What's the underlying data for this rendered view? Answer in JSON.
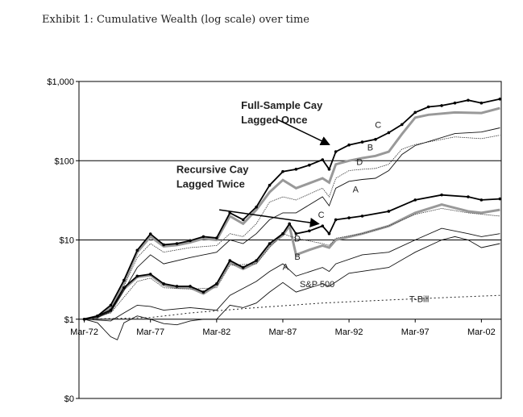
{
  "chart_data": {
    "type": "line",
    "title": "Exhibit 1: Cumulative Wealth (log scale) over time",
    "yscale": "log",
    "ylim": [
      0.1,
      1000
    ],
    "xlim": [
      1971.6,
      2003.5
    ],
    "y_ticks": [
      {
        "v": 1000,
        "label": "$1,000"
      },
      {
        "v": 100,
        "label": "$100"
      },
      {
        "v": 10,
        "label": "$10"
      },
      {
        "v": 1,
        "label": "$1"
      },
      {
        "v": 0.1,
        "label": "$0"
      }
    ],
    "x_ticks": [
      {
        "v": 1972,
        "label": "Mar-72"
      },
      {
        "v": 1977,
        "label": "Mar-77"
      },
      {
        "v": 1982,
        "label": "Mar-82"
      },
      {
        "v": 1987,
        "label": "Mar-87"
      },
      {
        "v": 1992,
        "label": "Mar-92"
      },
      {
        "v": 1997,
        "label": "Mar-97"
      },
      {
        "v": 2002,
        "label": "Mar-02"
      }
    ],
    "grid": "horizontal",
    "series": [
      {
        "name": "Full-Sample C",
        "style": "c",
        "x": [
          1972,
          1973,
          1974,
          1975,
          1976,
          1977,
          1978,
          1979,
          1980,
          1981,
          1982,
          1983,
          1984,
          1985,
          1986,
          1987,
          1988,
          1989,
          1990,
          1990.5,
          1991,
          1992,
          1993,
          1994,
          1995,
          1996,
          1997,
          1998,
          1999,
          2000,
          2001,
          2002,
          2003.4
        ],
        "y": [
          1,
          1.1,
          1.5,
          3.1,
          7.4,
          11.9,
          8.7,
          9,
          9.8,
          11,
          10.6,
          22,
          18,
          26,
          49,
          73,
          78,
          88,
          103,
          78,
          130,
          158,
          172,
          186,
          226,
          286,
          407,
          478,
          496,
          535,
          580,
          535,
          600
        ]
      },
      {
        "name": "Full-Sample B",
        "style": "b",
        "x": [
          1972,
          1973,
          1974,
          1975,
          1976,
          1977,
          1978,
          1979,
          1980,
          1981,
          1982,
          1983,
          1984,
          1985,
          1986,
          1987,
          1988,
          1989,
          1990,
          1990.5,
          1991,
          1992,
          1993,
          1994,
          1995,
          1996,
          1997,
          1998,
          2000,
          2002,
          2003.4
        ],
        "y": [
          1,
          1.05,
          1.4,
          2.9,
          7,
          11,
          8.3,
          8.6,
          9.3,
          10.4,
          10,
          20,
          16,
          24,
          40,
          57,
          45,
          52,
          60,
          53,
          90,
          100,
          108,
          115,
          130,
          217,
          350,
          380,
          407,
          400,
          460
        ]
      },
      {
        "name": "Full-Sample D",
        "style": "d",
        "x": [
          1972,
          1973,
          1974,
          1975,
          1976,
          1977,
          1978,
          1980,
          1982,
          1983,
          1984,
          1985,
          1986,
          1987,
          1988,
          1990,
          1990.5,
          1991,
          1992,
          1993,
          1994,
          1995,
          1996,
          1997,
          2000,
          2002,
          2003.4
        ],
        "y": [
          1,
          1.05,
          1.3,
          2.6,
          6,
          9,
          7,
          8,
          8.5,
          12,
          11,
          16,
          30,
          35,
          32,
          45,
          35,
          60,
          75,
          78,
          80,
          90,
          140,
          160,
          200,
          190,
          210
        ]
      },
      {
        "name": "Full-Sample A",
        "style": "a",
        "x": [
          1972,
          1973,
          1974,
          1975,
          1976,
          1977,
          1978,
          1980,
          1982,
          1983,
          1984,
          1985,
          1986,
          1987,
          1988,
          1990,
          1990.5,
          1991,
          1992,
          1993,
          1994,
          1995,
          1996,
          1997,
          2000,
          2002,
          2003.4
        ],
        "y": [
          1,
          1.05,
          1.25,
          2.3,
          4.5,
          6.5,
          5,
          6,
          7,
          10,
          9,
          12,
          18,
          22,
          22,
          35,
          27,
          45,
          55,
          58,
          60,
          75,
          120,
          155,
          220,
          230,
          260
        ]
      },
      {
        "name": "Recursive C",
        "style": "c",
        "x": [
          1972,
          1973,
          1974,
          1975,
          1976,
          1977,
          1978,
          1979,
          1980,
          1981,
          1982,
          1983,
          1984,
          1985,
          1986,
          1987,
          1987.5,
          1988,
          1989,
          1990,
          1990.5,
          1991,
          1992,
          1993,
          1995,
          1997,
          1999,
          2001,
          2002,
          2003.4
        ],
        "y": [
          1,
          1.1,
          1.3,
          2.5,
          3.5,
          3.7,
          2.8,
          2.6,
          2.6,
          2.2,
          2.8,
          5.5,
          4.5,
          5.5,
          9,
          12,
          16,
          12,
          13,
          15,
          12,
          18,
          19,
          20,
          23,
          32,
          37,
          35,
          32,
          33
        ]
      },
      {
        "name": "Recursive B",
        "style": "b",
        "x": [
          1972,
          1973,
          1974,
          1975,
          1976,
          1977,
          1978,
          1979,
          1980,
          1981,
          1982,
          1983,
          1984,
          1985,
          1986,
          1987,
          1987.5,
          1988,
          1989,
          1990,
          1990.5,
          1991,
          1993,
          1995,
          1997,
          1999,
          2001,
          2002,
          2003.4
        ],
        "y": [
          1,
          1.08,
          1.25,
          2.4,
          3.4,
          3.6,
          2.7,
          2.5,
          2.5,
          2.1,
          2.7,
          5.2,
          4.3,
          5.2,
          8.5,
          11.5,
          15,
          6.5,
          7.5,
          8.5,
          8,
          10,
          12,
          15,
          22,
          28,
          23,
          22,
          24
        ]
      },
      {
        "name": "Recursive D",
        "style": "d",
        "x": [
          1972,
          1974,
          1976,
          1977,
          1978,
          1980,
          1982,
          1983,
          1985,
          1986,
          1987,
          1988,
          1990,
          1990.5,
          1991,
          1993,
          1995,
          1997,
          1999,
          2001,
          2003.4
        ],
        "y": [
          1,
          1.2,
          3,
          3.3,
          2.5,
          2.4,
          2.5,
          4.8,
          5,
          8,
          12,
          10.5,
          9,
          8.5,
          10.5,
          12,
          15,
          21,
          25,
          22,
          20
        ]
      },
      {
        "name": "Recursive A",
        "style": "a",
        "x": [
          1972,
          1974,
          1975,
          1976,
          1977,
          1978,
          1980,
          1982,
          1983,
          1985,
          1986,
          1987,
          1988,
          1990,
          1990.5,
          1991,
          1993,
          1995,
          1997,
          1999,
          2001,
          2002,
          2003.4
        ],
        "y": [
          1,
          0.95,
          1.2,
          1.5,
          1.45,
          1.3,
          1.4,
          1.3,
          2,
          3,
          4,
          5,
          3.5,
          4.5,
          4,
          5,
          6.5,
          7,
          10,
          14,
          12,
          11,
          12
        ]
      },
      {
        "name": "S&P 500",
        "style": "a",
        "x": [
          1972,
          1973,
          1974,
          1974.5,
          1975,
          1976,
          1977,
          1978,
          1979,
          1980,
          1981,
          1982,
          1983,
          1984,
          1985,
          1986,
          1987,
          1988,
          1990,
          1990.5,
          1992,
          1995,
          1997,
          1999,
          2000,
          2001,
          2002,
          2003.4
        ],
        "y": [
          1,
          0.9,
          0.6,
          0.55,
          0.9,
          1.1,
          1.0,
          0.88,
          0.85,
          0.95,
          1.0,
          1.0,
          1.5,
          1.4,
          1.6,
          2.2,
          2.9,
          2.2,
          2.8,
          2.6,
          3.8,
          4.5,
          7,
          10,
          11,
          10,
          8,
          9
        ]
      },
      {
        "name": "T-Bill",
        "style": "t",
        "x": [
          1972,
          1977,
          1980,
          1985,
          1990,
          1995,
          2000,
          2003.4
        ],
        "y": [
          1,
          1.05,
          1.2,
          1.4,
          1.6,
          1.75,
          1.9,
          2.0
        ]
      }
    ],
    "annotations": [
      {
        "text": [
          "Full-Sample Cay",
          "Lagged Once"
        ],
        "x": 1987.5,
        "y": 450,
        "arrow_to": [
          1990.5,
          160
        ],
        "arrow_from": [
          1986.6,
          330
        ]
      },
      {
        "text": [
          "Recursive Cay",
          "Lagged Twice"
        ],
        "x": 1982,
        "y": 70,
        "arrow_to": [
          1989.7,
          16
        ],
        "arrow_from": [
          1982.2,
          24
        ]
      }
    ],
    "point_labels": [
      {
        "text": "C",
        "x": 1994.2,
        "y": 260
      },
      {
        "text": "B",
        "x": 1993.6,
        "y": 135
      },
      {
        "text": "D",
        "x": 1992.8,
        "y": 88
      },
      {
        "text": "A",
        "x": 1992.5,
        "y": 40
      },
      {
        "text": "C",
        "x": 1989.9,
        "y": 19
      },
      {
        "text": "D",
        "x": 1988.1,
        "y": 9.5
      },
      {
        "text": "B",
        "x": 1988.1,
        "y": 5.6
      },
      {
        "text": "A",
        "x": 1987.2,
        "y": 4.2
      },
      {
        "text": "S&P 500",
        "x": 1989.6,
        "y": 2.55
      },
      {
        "text": "T-Bill",
        "x": 1997.3,
        "y": 1.65
      }
    ]
  }
}
